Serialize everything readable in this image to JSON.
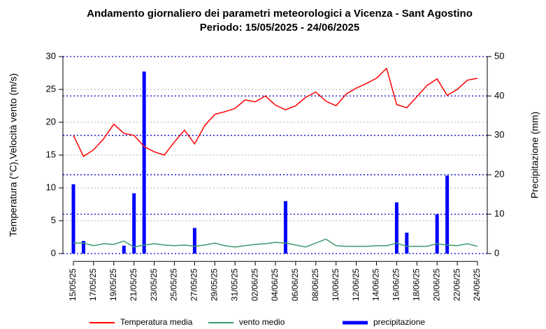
{
  "chart_data": {
    "type": "line",
    "title": "Andamento giornaliero dei parametri meteorologici a Vicenza - Sant Agostino",
    "subtitle": "Periodo:  15/05/2025 -  24/06/2025",
    "y_label": "Temperatura (°C),Velocità vento (m/s)",
    "y2_label": "Precipitazione (mm)",
    "categories": [
      "15/05/25",
      null,
      "17/05/25",
      null,
      "19/05/25",
      null,
      "21/05/25",
      null,
      "23/05/25",
      null,
      "25/05/25",
      null,
      "27/05/25",
      null,
      "29/05/25",
      null,
      "31/05/25",
      null,
      "02/06/25",
      null,
      "04/06/25",
      null,
      "06/06/25",
      null,
      "08/06/25",
      null,
      "10/06/25",
      null,
      "12/06/25",
      null,
      "14/06/25",
      null,
      "16/06/25",
      null,
      "18/06/25",
      null,
      "20/06/25",
      null,
      "22/06/25",
      null,
      "24/06/25"
    ],
    "series": [
      {
        "name": "Temperatura media",
        "type": "line",
        "color": "#ff0000",
        "values": [
          18.0,
          14.8,
          15.8,
          17.5,
          19.7,
          18.3,
          18.0,
          16.3,
          15.5,
          15.0,
          17.0,
          18.8,
          16.7,
          19.5,
          21.2,
          21.6,
          22.1,
          23.4,
          23.1,
          24.0,
          22.6,
          21.9,
          22.5,
          23.8,
          24.6,
          23.2,
          22.5,
          24.3,
          25.2,
          25.9,
          26.7,
          28.2,
          22.7,
          22.2,
          23.9,
          25.6,
          26.6,
          24.1,
          25.0,
          26.4,
          26.7
        ]
      },
      {
        "name": "vento medio",
        "type": "line",
        "color": "#3c9a6c",
        "values": [
          1.6,
          1.6,
          1.2,
          1.5,
          1.4,
          1.9,
          1.0,
          1.3,
          1.5,
          1.3,
          1.2,
          1.3,
          1.1,
          1.3,
          1.6,
          1.2,
          1.0,
          1.2,
          1.4,
          1.5,
          1.7,
          1.6,
          1.3,
          1.0,
          1.6,
          2.2,
          1.2,
          1.1,
          1.1,
          1.1,
          1.2,
          1.2,
          1.6,
          1.1,
          1.1,
          1.1,
          1.5,
          1.3,
          1.2,
          1.5,
          1.1
        ]
      },
      {
        "name": "precipitazione",
        "type": "bar",
        "axis": "y2",
        "color": "#0000ff",
        "values": [
          17.6,
          3.2,
          0,
          0,
          0,
          2.0,
          15.3,
          46.2,
          0,
          0,
          0,
          0,
          6.5,
          0,
          0,
          0,
          0,
          0,
          0,
          0,
          0,
          13.3,
          0,
          0,
          0,
          0,
          0,
          0,
          0,
          0,
          0,
          0,
          13.0,
          5.3,
          0,
          0,
          10.0,
          19.8,
          0,
          0,
          0
        ]
      }
    ],
    "ylim": [
      -1.2,
      31.2
    ],
    "yticks": [
      0,
      5,
      10,
      15,
      20,
      25,
      30
    ],
    "y2lim": [
      -2,
      52
    ],
    "y2ticks": [
      0,
      10,
      20,
      30,
      40,
      50
    ],
    "grid": true,
    "legend": "bottom"
  }
}
